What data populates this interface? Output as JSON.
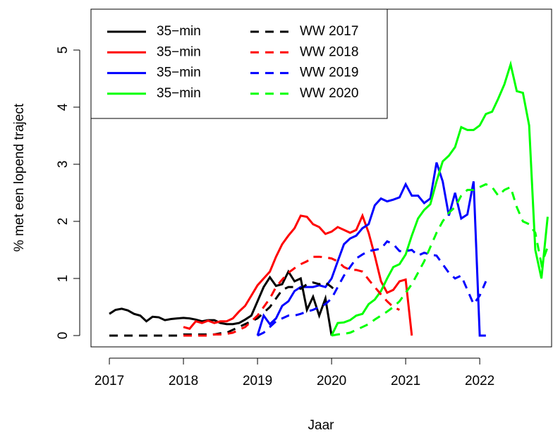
{
  "chart_data": {
    "type": "line",
    "x_label": "Jaar",
    "y_label": "% met een lopend traject",
    "x": [
      2017,
      2017.083,
      2017.167,
      2017.25,
      2017.333,
      2017.417,
      2017.5,
      2017.583,
      2017.667,
      2017.75,
      2017.833,
      2017.917,
      2018,
      2018.083,
      2018.167,
      2018.25,
      2018.333,
      2018.417,
      2018.5,
      2018.583,
      2018.667,
      2018.75,
      2018.833,
      2018.917,
      2019,
      2019.083,
      2019.167,
      2019.25,
      2019.333,
      2019.417,
      2019.5,
      2019.583,
      2019.667,
      2019.75,
      2019.833,
      2019.917,
      2020,
      2020.083,
      2020.167,
      2020.25,
      2020.333,
      2020.417,
      2020.5,
      2020.583,
      2020.667,
      2020.75,
      2020.833,
      2020.917,
      2021,
      2021.083,
      2021.167,
      2021.25,
      2021.333,
      2021.417,
      2021.5,
      2021.583,
      2021.667,
      2021.75,
      2021.833,
      2021.917,
      2022,
      2022.083,
      2022.167,
      2022.25,
      2022.333,
      2022.417,
      2022.5,
      2022.583,
      2022.667,
      2022.75,
      2022.833,
      2022.917
    ],
    "series": [
      {
        "name": "35−min",
        "color": "#000000",
        "linestyle": "solid",
        "values": [
          0.38,
          0.45,
          0.47,
          0.44,
          0.38,
          0.35,
          0.25,
          0.33,
          0.32,
          0.27,
          0.29,
          0.3,
          0.31,
          0.3,
          0.28,
          0.25,
          0.27,
          0.27,
          0.22,
          0.2,
          0.2,
          0.22,
          0.28,
          0.35,
          0.6,
          0.85,
          1.02,
          0.87,
          0.9,
          1.12,
          0.95,
          1.0,
          0.45,
          0.68,
          0.35,
          0.65,
          0,
          null,
          null,
          null,
          null,
          null,
          null,
          null,
          null,
          null,
          null,
          null,
          null,
          null,
          null,
          null,
          null,
          null,
          null,
          null,
          null,
          null,
          null,
          null,
          null,
          null,
          null,
          null,
          null,
          null,
          null,
          null,
          null,
          null,
          null,
          null
        ]
      },
      {
        "name": "35−min",
        "color": "#ff0000",
        "linestyle": "solid",
        "values": [
          null,
          null,
          null,
          null,
          null,
          null,
          null,
          null,
          null,
          null,
          null,
          null,
          0.15,
          0.12,
          0.25,
          0.22,
          0.26,
          0.22,
          0.25,
          0.25,
          0.3,
          0.42,
          0.52,
          0.7,
          0.88,
          1.0,
          1.12,
          1.38,
          1.6,
          1.75,
          1.88,
          2.1,
          2.08,
          1.95,
          1.9,
          1.78,
          1.82,
          1.9,
          1.85,
          1.8,
          1.85,
          2.1,
          1.8,
          1.4,
          0.95,
          0.75,
          0.8,
          0.95,
          0.98,
          0,
          null,
          null,
          null,
          null,
          null,
          null,
          null,
          null,
          null,
          null,
          null,
          null,
          null,
          null,
          null,
          null,
          null,
          null,
          null,
          null,
          null,
          null
        ]
      },
      {
        "name": "35−min",
        "color": "#0000ff",
        "linestyle": "solid",
        "values": [
          null,
          null,
          null,
          null,
          null,
          null,
          null,
          null,
          null,
          null,
          null,
          null,
          null,
          null,
          null,
          null,
          null,
          null,
          null,
          null,
          null,
          null,
          null,
          null,
          0,
          0.35,
          0.2,
          0.3,
          0.52,
          0.6,
          0.78,
          0.85,
          0.85,
          0.85,
          0.88,
          0.85,
          1.0,
          1.3,
          1.6,
          1.7,
          1.75,
          1.88,
          1.95,
          2.28,
          2.4,
          2.35,
          2.38,
          2.42,
          2.65,
          2.45,
          2.45,
          2.32,
          2.4,
          3.03,
          2.7,
          2.1,
          2.5,
          2.05,
          2.12,
          2.7,
          0,
          0,
          null,
          null,
          null,
          null,
          null,
          null,
          null,
          null,
          null,
          null
        ]
      },
      {
        "name": "35−min",
        "color": "#00ff00",
        "linestyle": "solid",
        "values": [
          null,
          null,
          null,
          null,
          null,
          null,
          null,
          null,
          null,
          null,
          null,
          null,
          null,
          null,
          null,
          null,
          null,
          null,
          null,
          null,
          null,
          null,
          null,
          null,
          null,
          null,
          null,
          null,
          null,
          null,
          null,
          null,
          null,
          null,
          null,
          null,
          0,
          0.22,
          0.23,
          0.27,
          0.35,
          0.38,
          0.55,
          0.63,
          0.78,
          1.0,
          1.2,
          1.25,
          1.42,
          1.75,
          2.05,
          2.2,
          2.3,
          2.7,
          3.05,
          3.15,
          3.3,
          3.65,
          3.6,
          3.6,
          3.68,
          3.88,
          3.92,
          4.15,
          4.4,
          4.75,
          4.28,
          4.25,
          3.68,
          1.5,
          1.0,
          2.08
        ]
      },
      {
        "name": "WW 2017",
        "color": "#000000",
        "linestyle": "dashed",
        "values": [
          0,
          0,
          0,
          0,
          0,
          0,
          0,
          0,
          0,
          0,
          0,
          0,
          0.02,
          0.02,
          0.02,
          0.02,
          0.02,
          0.02,
          0.04,
          0.05,
          0.1,
          0.15,
          0.2,
          0.25,
          0.3,
          0.4,
          0.5,
          0.65,
          0.8,
          0.85,
          0.85,
          0.82,
          0.9,
          0.93,
          0.9,
          0.93,
          0.85,
          0.75,
          null,
          null,
          null,
          null,
          null,
          null,
          null,
          null,
          null,
          null,
          null,
          null,
          null,
          null,
          null,
          null,
          null,
          null,
          null,
          null,
          null,
          null,
          null,
          null,
          null,
          null,
          null,
          null,
          null,
          null,
          null,
          null,
          null,
          null
        ]
      },
      {
        "name": "WW 2018",
        "color": "#ff0000",
        "linestyle": "dashed",
        "values": [
          null,
          null,
          null,
          null,
          null,
          null,
          null,
          null,
          null,
          null,
          null,
          null,
          0,
          0,
          0,
          0,
          0,
          0.02,
          0.02,
          0.03,
          0.05,
          0.1,
          0.15,
          0.25,
          0.35,
          0.5,
          0.65,
          0.85,
          0.98,
          1.1,
          1.18,
          1.25,
          1.3,
          1.38,
          1.38,
          1.37,
          1.35,
          1.3,
          1.2,
          1.15,
          1.15,
          1.12,
          0.98,
          0.85,
          0.72,
          0.6,
          0.5,
          0.45,
          null,
          null,
          null,
          null,
          null,
          null,
          null,
          null,
          null,
          null,
          null,
          null,
          null,
          null,
          null,
          null,
          null,
          null,
          null,
          null,
          null,
          null,
          null,
          null
        ]
      },
      {
        "name": "WW 2019",
        "color": "#0000ff",
        "linestyle": "dashed",
        "values": [
          null,
          null,
          null,
          null,
          null,
          null,
          null,
          null,
          null,
          null,
          null,
          null,
          null,
          null,
          null,
          null,
          null,
          null,
          null,
          null,
          null,
          null,
          null,
          null,
          0,
          0.05,
          0.15,
          0.25,
          0.3,
          0.35,
          0.35,
          0.38,
          0.42,
          0.45,
          0.5,
          0.55,
          0.65,
          0.85,
          1.05,
          1.2,
          1.35,
          1.42,
          1.48,
          1.5,
          1.52,
          1.65,
          1.6,
          1.48,
          1.48,
          1.5,
          1.4,
          1.45,
          1.42,
          1.4,
          1.25,
          1.1,
          1.0,
          1.05,
          0.8,
          0.55,
          0.7,
          0.95,
          null,
          null,
          null,
          null,
          null,
          null,
          null,
          null,
          null,
          null
        ]
      },
      {
        "name": "WW 2020",
        "color": "#00ff00",
        "linestyle": "dashed",
        "values": [
          null,
          null,
          null,
          null,
          null,
          null,
          null,
          null,
          null,
          null,
          null,
          null,
          null,
          null,
          null,
          null,
          null,
          null,
          null,
          null,
          null,
          null,
          null,
          null,
          null,
          null,
          null,
          null,
          null,
          null,
          null,
          null,
          null,
          null,
          null,
          null,
          0,
          0.02,
          0.03,
          0.05,
          0.1,
          0.15,
          0.2,
          0.28,
          0.35,
          0.42,
          0.5,
          0.6,
          0.75,
          0.9,
          1.1,
          1.3,
          1.55,
          1.8,
          2.0,
          2.15,
          2.25,
          2.45,
          2.55,
          2.55,
          2.6,
          2.65,
          2.6,
          2.45,
          2.55,
          2.6,
          2.25,
          2.0,
          1.95,
          1.8,
          1.25,
          1.55
        ]
      }
    ],
    "xlim": [
      2016.752,
      2022.97
    ],
    "ylim": [
      -0.198,
      5.716
    ],
    "xticks": [
      2017,
      2018,
      2019,
      2020,
      2021,
      2022
    ],
    "yticks": [
      0,
      1,
      2,
      3,
      4,
      5
    ],
    "legend": "top-left"
  }
}
